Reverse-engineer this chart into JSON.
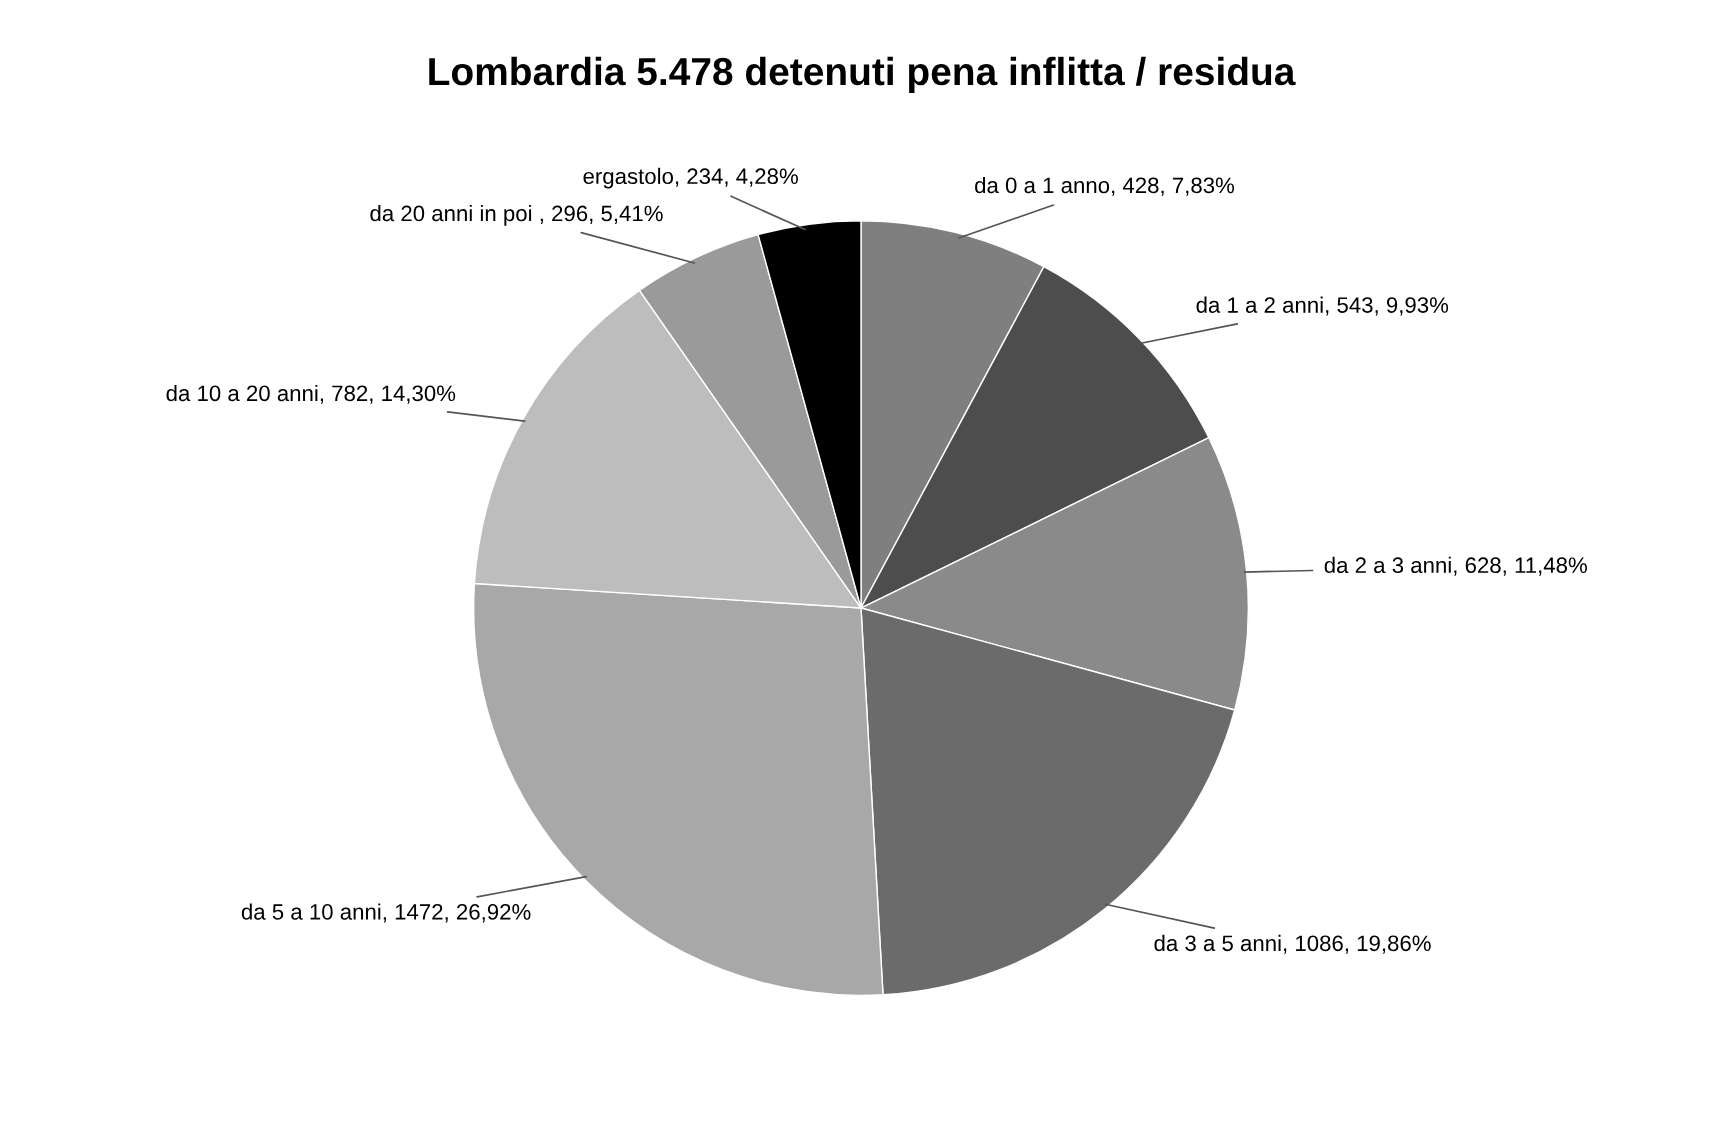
{
  "chart_data": {
    "type": "pie",
    "title": "Lombardia 5.478 detenuti pena inflitta / residua",
    "categories": [
      "da 0 a 1 anno",
      "da 1 a 2 anni",
      "da 2 a 3 anni",
      "da 3 a 5 anni",
      "da 5 a 10 anni",
      "da 10 a 20 anni",
      "da 20 anni in poi ",
      "ergastolo"
    ],
    "values": [
      428,
      543,
      628,
      1086,
      1472,
      782,
      296,
      234
    ],
    "value_labels": [
      "428, 7,83%",
      "543, 9,93%",
      "628, 11,48%",
      "1086, 19,86%",
      "1472, 26,92%",
      "782, 14,30%",
      "296, 5,41%",
      "234, 4,28%"
    ],
    "colors": [
      "#7f7f7f",
      "#4d4d4d",
      "#8a8a8a",
      "#6b6b6b",
      "#a8a8a8",
      "#bdbdbd",
      "#9a9a9a",
      "#000000"
    ],
    "legend": false
  }
}
